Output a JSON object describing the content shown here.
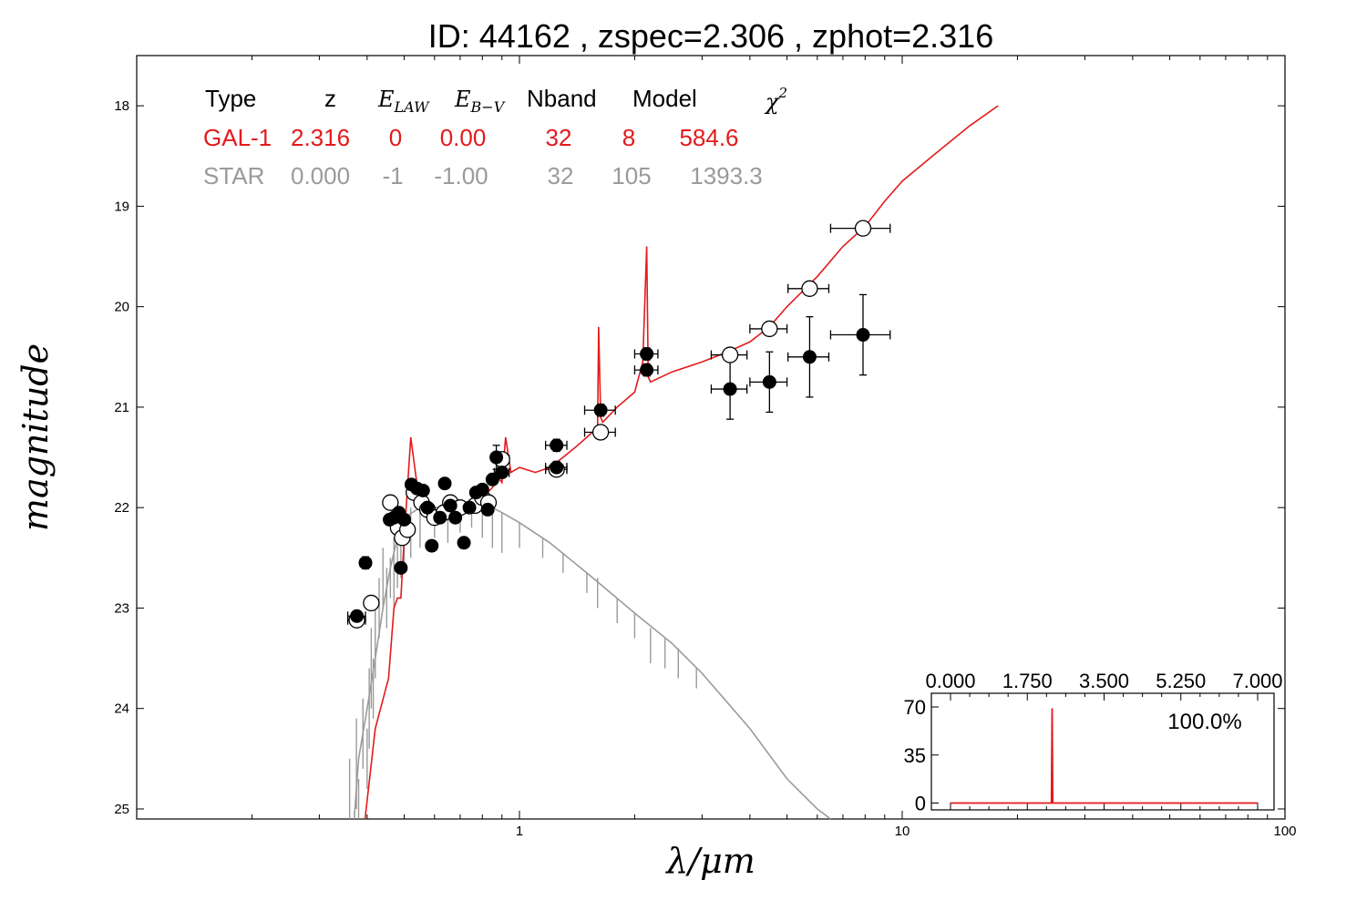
{
  "title": "ID:  44162 , zspec=2.306 , zphot=2.316",
  "colors": {
    "gal": "#e31a1c",
    "star": "#9a9a9a",
    "points": "#000000",
    "inset_line": "#e31a1c"
  },
  "table": {
    "headers": [
      "Type",
      "z",
      "E_LAW",
      "E_B-V",
      "Nband",
      "Model",
      "χ²"
    ],
    "rows": [
      {
        "type": "GAL-1",
        "z": "2.316",
        "elaw": "0",
        "ebv": "0.00",
        "nband": "32",
        "model": "8",
        "chi2": "584.6",
        "color": "#e31a1c"
      },
      {
        "type": "STAR",
        "z": "0.000",
        "elaw": "-1",
        "ebv": "-1.00",
        "nband": "32",
        "model": "105",
        "chi2": "1393.3",
        "color": "#9a9a9a"
      }
    ]
  },
  "chart_data": {
    "type": "scatter",
    "xlabel": "λ/μm",
    "ylabel": "magnitude",
    "xscale": "log",
    "xlim": [
      0.1,
      100
    ],
    "ylim": [
      25.1,
      17.5
    ],
    "xticks": [
      1,
      10,
      100
    ],
    "yticks": [
      18,
      19,
      20,
      21,
      22,
      23,
      24,
      25
    ],
    "grid": false,
    "series": [
      {
        "kind": "model_line",
        "color": "#e31a1c",
        "x": [
          0.395,
          0.42,
          0.455,
          0.47,
          0.48,
          0.49,
          0.5,
          0.52,
          0.55,
          0.6,
          0.65,
          0.7,
          0.75,
          0.8,
          0.85,
          0.88,
          0.9,
          0.92,
          0.95,
          1.0,
          1.1,
          1.2,
          1.3,
          1.4,
          1.5,
          1.6,
          1.61,
          1.63,
          1.65,
          1.8,
          2.0,
          2.1,
          2.15,
          2.17,
          2.2,
          2.5,
          3.0,
          3.5,
          4.0,
          4.5,
          5.0,
          6.0,
          7.0,
          8.0,
          9.0,
          10.0,
          12.0,
          15.0,
          17.8
        ],
        "y": [
          25.1,
          24.2,
          23.7,
          23.0,
          22.9,
          22.9,
          22.3,
          21.3,
          22.0,
          22.1,
          22.0,
          22.0,
          21.95,
          21.9,
          21.8,
          21.7,
          21.75,
          21.3,
          21.65,
          21.6,
          21.65,
          21.6,
          21.5,
          21.4,
          21.3,
          21.2,
          20.2,
          21.1,
          21.15,
          21.0,
          20.85,
          20.55,
          19.4,
          20.7,
          20.75,
          20.65,
          20.55,
          20.45,
          20.35,
          20.2,
          20.0,
          19.7,
          19.4,
          19.2,
          18.95,
          18.75,
          18.5,
          18.2,
          18.0
        ]
      },
      {
        "kind": "star_model",
        "color": "#9a9a9a",
        "x": [
          0.37,
          0.38,
          0.4,
          0.42,
          0.44,
          0.46,
          0.48,
          0.5,
          0.55,
          0.6,
          0.65,
          0.7,
          0.75,
          0.8,
          0.85,
          0.9,
          1.0,
          1.2,
          1.5,
          2.0,
          2.5,
          3.0,
          4.0,
          5.0,
          6.0,
          6.5
        ],
        "y": [
          25.1,
          24.5,
          24.0,
          23.5,
          23.0,
          22.6,
          22.3,
          22.1,
          22.0,
          22.0,
          22.0,
          21.98,
          21.97,
          21.97,
          22.0,
          22.05,
          22.15,
          22.35,
          22.65,
          23.05,
          23.35,
          23.65,
          24.2,
          24.7,
          25.0,
          25.1
        ],
        "absorption_lines": [
          [
            0.36,
            24.5,
            25.1
          ],
          [
            0.375,
            24.1,
            25.0
          ],
          [
            0.38,
            24.7,
            25.1
          ],
          [
            0.39,
            23.9,
            24.6
          ],
          [
            0.4,
            24.2,
            24.8
          ],
          [
            0.405,
            23.6,
            24.4
          ],
          [
            0.41,
            23.2,
            24.0
          ],
          [
            0.415,
            23.5,
            24.1
          ],
          [
            0.42,
            23.0,
            23.7
          ],
          [
            0.43,
            22.7,
            23.3
          ],
          [
            0.44,
            22.4,
            23.0
          ],
          [
            0.45,
            22.6,
            23.2
          ],
          [
            0.46,
            22.5,
            22.9
          ],
          [
            0.47,
            22.3,
            23.0
          ],
          [
            0.48,
            22.2,
            22.8
          ],
          [
            0.49,
            22.1,
            22.7
          ],
          [
            0.5,
            22.05,
            22.6
          ],
          [
            0.52,
            22.0,
            22.5
          ],
          [
            0.55,
            22.0,
            22.4
          ],
          [
            0.6,
            22.0,
            22.3
          ],
          [
            0.65,
            22.0,
            22.35
          ],
          [
            0.7,
            21.98,
            22.25
          ],
          [
            0.75,
            21.97,
            22.2
          ],
          [
            0.8,
            21.97,
            22.3
          ],
          [
            0.85,
            22.0,
            22.4
          ],
          [
            0.9,
            22.05,
            22.45
          ],
          [
            1.0,
            22.15,
            22.4
          ],
          [
            1.15,
            22.3,
            22.5
          ],
          [
            1.3,
            22.45,
            22.65
          ],
          [
            1.5,
            22.65,
            22.85
          ],
          [
            1.6,
            22.7,
            23.0
          ],
          [
            1.8,
            22.9,
            23.15
          ],
          [
            2.0,
            23.05,
            23.3
          ],
          [
            2.2,
            23.2,
            23.55
          ],
          [
            2.4,
            23.3,
            23.6
          ],
          [
            2.6,
            23.4,
            23.7
          ],
          [
            2.9,
            23.6,
            23.8
          ]
        ]
      },
      {
        "kind": "observed",
        "color": "#000000",
        "marker": "filled",
        "points": [
          {
            "x": 0.376,
            "y": 23.08,
            "xerr": 0.02,
            "yerr": 0.05
          },
          {
            "x": 0.396,
            "y": 22.55,
            "xerr": 0.012,
            "yerr": 0.06
          },
          {
            "x": 0.458,
            "y": 22.12,
            "xerr": 0.012,
            "yerr": 0.05
          },
          {
            "x": 0.47,
            "y": 22.1,
            "xerr": 0.01,
            "yerr": 0.05
          },
          {
            "x": 0.484,
            "y": 22.05,
            "xerr": 0.012,
            "yerr": 0.05
          },
          {
            "x": 0.49,
            "y": 22.6,
            "xerr": 0.008,
            "yerr": 0.05
          },
          {
            "x": 0.5,
            "y": 22.12,
            "xerr": 0.01,
            "yerr": 0.05
          },
          {
            "x": 0.522,
            "y": 21.77,
            "xerr": 0.01,
            "yerr": 0.05
          },
          {
            "x": 0.54,
            "y": 21.81,
            "xerr": 0.012,
            "yerr": 0.05
          },
          {
            "x": 0.56,
            "y": 21.83,
            "xerr": 0.012,
            "yerr": 0.05
          },
          {
            "x": 0.575,
            "y": 22.0,
            "xerr": 0.01,
            "yerr": 0.05
          },
          {
            "x": 0.59,
            "y": 22.38,
            "xerr": 0.01,
            "yerr": 0.05
          },
          {
            "x": 0.62,
            "y": 22.1,
            "xerr": 0.012,
            "yerr": 0.05
          },
          {
            "x": 0.638,
            "y": 21.76,
            "xerr": 0.012,
            "yerr": 0.05
          },
          {
            "x": 0.66,
            "y": 21.98,
            "xerr": 0.012,
            "yerr": 0.05
          },
          {
            "x": 0.68,
            "y": 22.1,
            "xerr": 0.012,
            "yerr": 0.05
          },
          {
            "x": 0.716,
            "y": 22.35,
            "xerr": 0.012,
            "yerr": 0.05
          },
          {
            "x": 0.74,
            "y": 22.0,
            "xerr": 0.012,
            "yerr": 0.05
          },
          {
            "x": 0.77,
            "y": 21.85,
            "xerr": 0.012,
            "yerr": 0.05
          },
          {
            "x": 0.8,
            "y": 21.82,
            "xerr": 0.012,
            "yerr": 0.05
          },
          {
            "x": 0.826,
            "y": 22.02,
            "xerr": 0.012,
            "yerr": 0.05
          },
          {
            "x": 0.85,
            "y": 21.72,
            "xerr": 0.015,
            "yerr": 0.05
          },
          {
            "x": 0.87,
            "y": 21.5,
            "xerr": 0.02,
            "yerr": 0.12
          },
          {
            "x": 0.9,
            "y": 21.65,
            "xerr": 0.04,
            "yerr": 0.05
          },
          {
            "x": 1.25,
            "y": 21.38,
            "xerr": 0.08,
            "yerr": 0.06
          },
          {
            "x": 1.25,
            "y": 21.6,
            "xerr": 0.08,
            "yerr": 0.06
          },
          {
            "x": 1.63,
            "y": 21.03,
            "xerr": 0.15,
            "yerr": 0.06
          },
          {
            "x": 2.15,
            "y": 20.47,
            "xerr": 0.15,
            "yerr": 0.06
          },
          {
            "x": 2.15,
            "y": 20.63,
            "xerr": 0.15,
            "yerr": 0.06
          },
          {
            "x": 3.55,
            "y": 20.82,
            "xerr": 0.38,
            "yerr": 0.3
          },
          {
            "x": 4.5,
            "y": 20.75,
            "xerr": 0.5,
            "yerr": 0.3
          },
          {
            "x": 5.73,
            "y": 20.5,
            "xerr": 0.7,
            "yerr": 0.4
          },
          {
            "x": 7.9,
            "y": 20.28,
            "xerr": 1.4,
            "yerr": 0.4
          }
        ]
      },
      {
        "kind": "model_photometry",
        "color": "#000000",
        "marker": "open",
        "points": [
          {
            "x": 0.376,
            "y": 23.12,
            "xerr": 0.02,
            "yerr": 0.05
          },
          {
            "x": 0.41,
            "y": 22.95,
            "xerr": 0.012,
            "yerr": 0.05
          },
          {
            "x": 0.46,
            "y": 21.95,
            "xerr": 0.012,
            "yerr": 0.05
          },
          {
            "x": 0.482,
            "y": 22.2,
            "xerr": 0.01,
            "yerr": 0.05
          },
          {
            "x": 0.494,
            "y": 22.3,
            "xerr": 0.01,
            "yerr": 0.05
          },
          {
            "x": 0.51,
            "y": 22.22,
            "xerr": 0.01,
            "yerr": 0.05
          },
          {
            "x": 0.53,
            "y": 21.85,
            "xerr": 0.01,
            "yerr": 0.05
          },
          {
            "x": 0.555,
            "y": 21.95,
            "xerr": 0.012,
            "yerr": 0.05
          },
          {
            "x": 0.575,
            "y": 22.02,
            "xerr": 0.012,
            "yerr": 0.05
          },
          {
            "x": 0.6,
            "y": 22.1,
            "xerr": 0.012,
            "yerr": 0.05
          },
          {
            "x": 0.635,
            "y": 22.05,
            "xerr": 0.012,
            "yerr": 0.05
          },
          {
            "x": 0.66,
            "y": 21.95,
            "xerr": 0.012,
            "yerr": 0.05
          },
          {
            "x": 0.7,
            "y": 22.0,
            "xerr": 0.012,
            "yerr": 0.05
          },
          {
            "x": 0.765,
            "y": 21.98,
            "xerr": 0.012,
            "yerr": 0.05
          },
          {
            "x": 0.8,
            "y": 21.9,
            "xerr": 0.012,
            "yerr": 0.05
          },
          {
            "x": 0.83,
            "y": 21.95,
            "xerr": 0.012,
            "yerr": 0.05
          },
          {
            "x": 0.9,
            "y": 21.52,
            "xerr": 0.04,
            "yerr": 0.05
          },
          {
            "x": 1.25,
            "y": 21.62,
            "xerr": 0.08,
            "yerr": 0.05
          },
          {
            "x": 1.63,
            "y": 21.25,
            "xerr": 0.15,
            "yerr": 0.05
          },
          {
            "x": 3.55,
            "y": 20.48,
            "xerr": 0.38,
            "yerr": 0.05
          },
          {
            "x": 4.5,
            "y": 20.22,
            "xerr": 0.5,
            "yerr": 0.05
          },
          {
            "x": 5.73,
            "y": 19.82,
            "xerr": 0.7,
            "yerr": 0.05
          },
          {
            "x": 7.9,
            "y": 19.22,
            "xerr": 1.4,
            "yerr": 0.05
          }
        ]
      }
    ],
    "inset": {
      "type": "line",
      "xlim": [
        0.0,
        7.0
      ],
      "xticks": [
        "0.000",
        "1.750",
        "3.500",
        "5.250",
        "7.000"
      ],
      "ylim": [
        -5,
        80
      ],
      "yticks": [
        "0",
        "35",
        "70"
      ],
      "label": "100.0%",
      "color": "#e31a1c",
      "x": [
        0.0,
        2.28,
        2.3,
        2.316,
        2.33,
        2.35,
        7.0
      ],
      "y": [
        0,
        0,
        0,
        69,
        0,
        0,
        0
      ]
    }
  }
}
